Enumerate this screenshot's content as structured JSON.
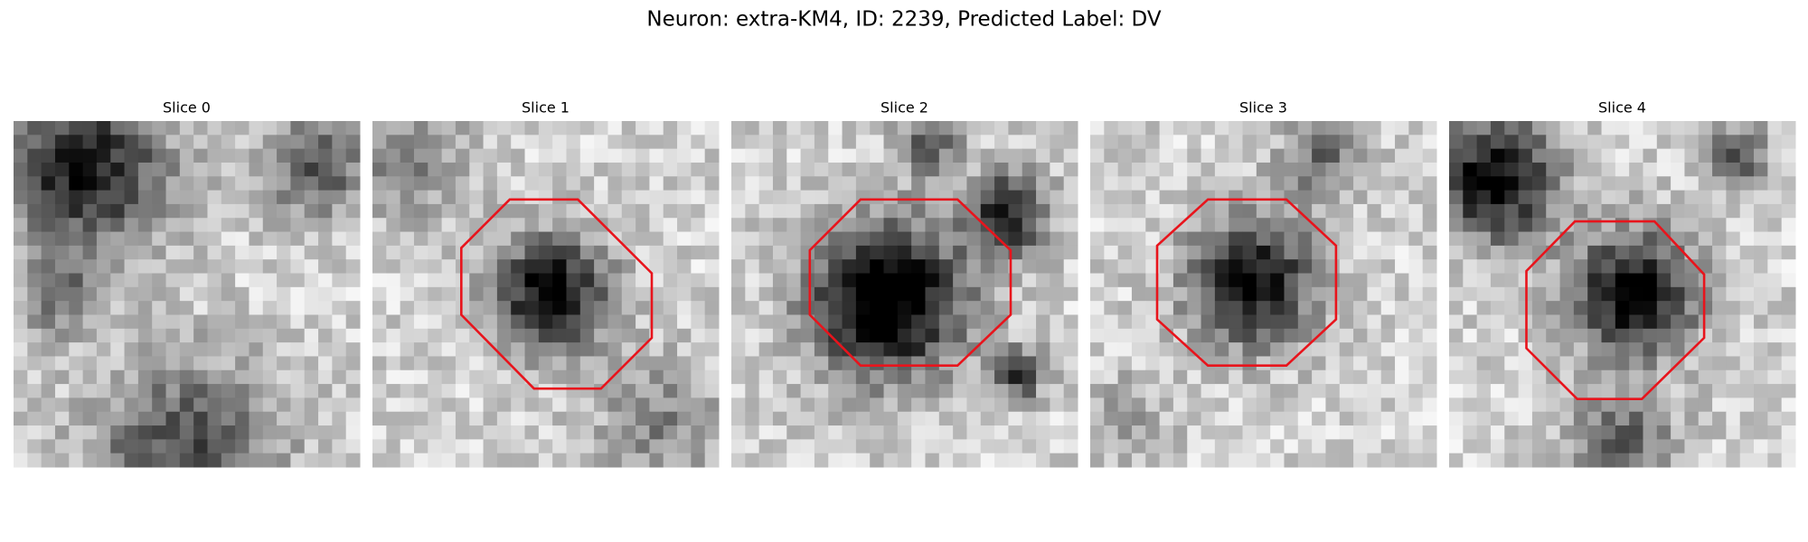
{
  "title": "Neuron: extra-KM4, ID: 2239, Predicted Label: DV",
  "panels": [
    {
      "title": "Slice 0"
    },
    {
      "title": "Slice 1"
    },
    {
      "title": "Slice 2"
    },
    {
      "title": "Slice 3"
    },
    {
      "title": "Slice 4"
    }
  ]
}
